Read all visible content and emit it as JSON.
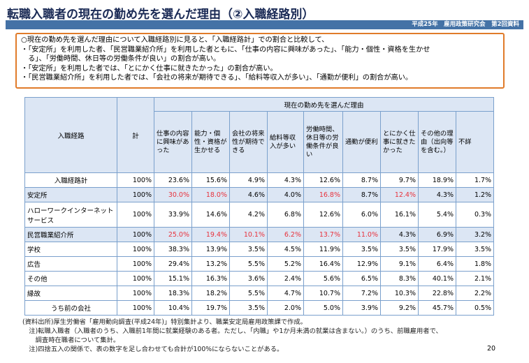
{
  "title": "転職入職者の現在の勤め先を選んだ理由（②入職経路別）",
  "header_source": "平成25年　雇用政策研究会　第2回資料",
  "summary": [
    "○現在の勤め先を選んだ理由について入職経路別に見ると、「入職経路計」での割合と比較して、",
    "・「安定所」を利用した者、「民営職業紹介所」を利用した者ともに、「仕事の内容に興味があった」、「能力・個性・資格を生かせ",
    "　る」、「労働時間、休日等の労働条件が良い」の割合が高い。",
    "・「安定所」を利用した者では、「とにかく仕事に就きたかった」の割合が高い。",
    "・「民営職業紹介所」を利用した者では、「会社の将来が期待できる」、「給料等収入が多い」、「通勤が便利」の割合が高い。"
  ],
  "table": {
    "group_header": "現在の勤め先を選んだ理由",
    "col_route": "入職経路",
    "col_total": "計",
    "reasons": [
      "仕事の内容に興味があった",
      "能力・個性・資格が生かせる",
      "会社の将来性が期待できる",
      "給料等収入が多い",
      "労働時間、休日等の労働条件が良い",
      "通勤が便利",
      "とにかく仕事に就きたかった",
      "その他の理由（出向等を含む。）",
      "不詳"
    ],
    "rows": [
      {
        "label": "入職経路計",
        "total": "100%",
        "values": [
          "23.6%",
          "15.6%",
          "4.9%",
          "4.3%",
          "12.6%",
          "8.7%",
          "9.7%",
          "18.9%",
          "1.7%"
        ],
        "red": []
      },
      {
        "label": "安定所",
        "total": "100%",
        "values": [
          "30.0%",
          "18.0%",
          "4.6%",
          "4.0%",
          "16.8%",
          "8.7%",
          "12.4%",
          "4.3%",
          "1.2%"
        ],
        "red": [
          0,
          1,
          4,
          6
        ]
      },
      {
        "label": "ハローワークインターネットサービス",
        "total": "100%",
        "values": [
          "33.9%",
          "14.6%",
          "4.2%",
          "6.8%",
          "12.6%",
          "6.0%",
          "16.1%",
          "5.4%",
          "0.3%"
        ],
        "red": []
      },
      {
        "label": "民営職業紹介所",
        "total": "100%",
        "values": [
          "25.0%",
          "19.4%",
          "10.1%",
          "6.2%",
          "13.7%",
          "11.0%",
          "4.3%",
          "6.9%",
          "3.2%"
        ],
        "red": [
          0,
          1,
          2,
          3,
          4,
          5
        ]
      },
      {
        "label": "学校",
        "total": "100%",
        "values": [
          "38.3%",
          "13.9%",
          "3.5%",
          "4.5%",
          "11.9%",
          "3.5%",
          "3.5%",
          "17.9%",
          "3.5%"
        ],
        "red": []
      },
      {
        "label": "広告",
        "total": "100%",
        "values": [
          "29.4%",
          "13.2%",
          "5.5%",
          "5.2%",
          "16.4%",
          "12.9%",
          "9.1%",
          "6.4%",
          "1.8%"
        ],
        "red": []
      },
      {
        "label": "その他",
        "total": "100%",
        "values": [
          "15.1%",
          "16.3%",
          "3.6%",
          "2.4%",
          "5.6%",
          "6.5%",
          "8.3%",
          "40.1%",
          "2.1%"
        ],
        "red": []
      },
      {
        "label": "縁故",
        "total": "100%",
        "values": [
          "18.3%",
          "18.2%",
          "5.5%",
          "4.7%",
          "10.7%",
          "7.2%",
          "10.3%",
          "22.8%",
          "2.2%"
        ],
        "red": []
      },
      {
        "label": "うち前の会社",
        "total": "100%",
        "values": [
          "10.4%",
          "19.7%",
          "3.5%",
          "2.0%",
          "5.0%",
          "3.9%",
          "9.2%",
          "45.7%",
          "0.5%"
        ],
        "red": []
      }
    ]
  },
  "notes": [
    "(資料出所)厚生労働省「雇用動向調査(平成24年)」特別集計より、職業安定局雇用政策課で作成。",
    "　注)転職入職者（入職者のうち、入職前1年間に就業経験のある者。ただし、「内職」や1か月未満の就業は含まない。）のうち、前職雇用者で、",
    "　　調査時在職者について集計。",
    "　注)四捨五入の関係で、表の数字を足し合わせても合計が100%にならないことがある。"
  ],
  "page_number": "20",
  "colors": {
    "accent_blue": "#4472a6",
    "frame_orange": "#e07b2a",
    "highlight_red": "#e8323c",
    "row_highlight": "#dce6f4"
  }
}
